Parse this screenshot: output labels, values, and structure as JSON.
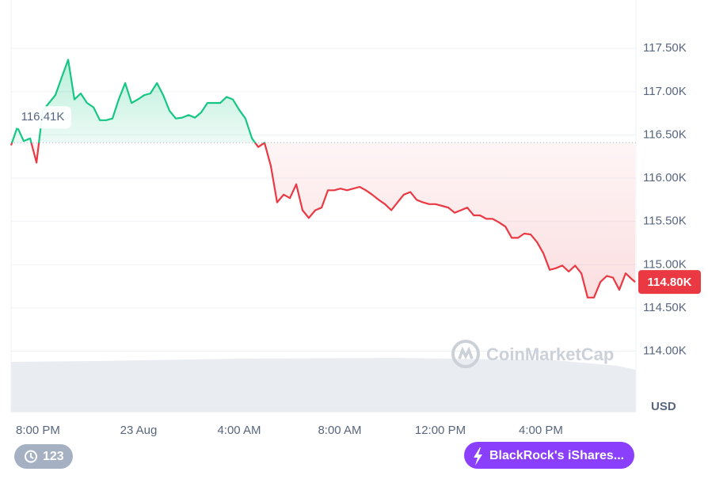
{
  "chart_data": {
    "type": "line",
    "x": [
      18.93,
      19.18,
      19.43,
      19.69,
      19.94,
      20.19,
      20.44,
      20.69,
      20.95,
      21.2,
      21.45,
      21.7,
      21.95,
      22.21,
      22.46,
      22.71,
      22.96,
      23.21,
      23.47,
      23.72,
      23.97,
      24.22,
      24.47,
      24.73,
      24.98,
      25.23,
      25.48,
      25.73,
      25.99,
      26.24,
      26.49,
      26.74,
      26.99,
      27.25,
      27.5,
      27.75,
      28.0,
      28.25,
      28.51,
      28.76,
      29.01,
      29.26,
      29.51,
      29.77,
      30.02,
      30.27,
      30.52,
      30.77,
      31.03,
      31.28,
      31.53,
      31.78,
      32.03,
      32.29,
      32.54,
      32.79,
      33.04,
      33.29,
      33.55,
      33.8,
      34.05,
      34.3,
      34.55,
      34.81,
      35.06,
      35.31,
      35.56,
      35.81,
      36.07,
      36.32,
      36.57,
      36.82,
      37.07,
      37.33,
      37.58,
      37.83,
      38.08,
      38.33,
      38.59,
      38.84,
      39.09,
      39.34,
      39.59,
      39.85,
      40.1,
      40.35,
      40.6,
      40.85,
      41.11,
      41.36,
      41.61,
      41.86,
      42.11,
      42.37,
      42.62,
      42.87,
      43.12,
      43.37,
      43.63,
      43.75
    ],
    "values": [
      116380,
      116590,
      116430,
      116460,
      116180,
      116780,
      116870,
      116960,
      117170,
      117370,
      116910,
      116980,
      116870,
      116820,
      116670,
      116670,
      116690,
      116910,
      117100,
      116870,
      116910,
      116960,
      116980,
      117100,
      116960,
      116780,
      116690,
      116700,
      116730,
      116700,
      116760,
      116870,
      116870,
      116870,
      116940,
      116910,
      116790,
      116690,
      116460,
      116360,
      116410,
      116140,
      115720,
      115810,
      115770,
      115930,
      115630,
      115540,
      115630,
      115660,
      115860,
      115860,
      115880,
      115860,
      115880,
      115900,
      115860,
      115810,
      115750,
      115700,
      115630,
      115720,
      115810,
      115840,
      115750,
      115720,
      115700,
      115700,
      115680,
      115660,
      115600,
      115630,
      115660,
      115570,
      115570,
      115530,
      115530,
      115490,
      115440,
      115310,
      115310,
      115360,
      115350,
      115260,
      115130,
      114940,
      114960,
      114990,
      114920,
      114990,
      114900,
      114620,
      114620,
      114800,
      114870,
      114850,
      114710,
      114900,
      114830,
      114800
    ],
    "color_up": "#16c784",
    "color_down": "#ea3943",
    "baseline": {
      "value": 116410,
      "label": "116.41K"
    },
    "last_price": {
      "value": 114800,
      "label": "114.80K"
    },
    "xlim": [
      18.93,
      43.78
    ],
    "ylim": [
      113300,
      118060
    ],
    "xticks": [
      {
        "value": 20,
        "label": "8:00 PM"
      },
      {
        "value": 24,
        "label": "23 Aug"
      },
      {
        "value": 28,
        "label": "4:00 AM"
      },
      {
        "value": 32,
        "label": "8:00 AM"
      },
      {
        "value": 36,
        "label": "12:00 PM"
      },
      {
        "value": 40,
        "label": "4:00 PM"
      }
    ],
    "yticks": [
      {
        "value": 114000,
        "label": "114.00K"
      },
      {
        "value": 114500,
        "label": "114.50K"
      },
      {
        "value": 115000,
        "label": "115.00K"
      },
      {
        "value": 115500,
        "label": "115.50K"
      },
      {
        "value": 116000,
        "label": "116.00K"
      },
      {
        "value": 116500,
        "label": "116.50K"
      },
      {
        "value": 117000,
        "label": "117.00K"
      },
      {
        "value": 117500,
        "label": "117.50K"
      }
    ],
    "grid": true,
    "y_axis_label": "USD",
    "watermark": "CoinMarketCap"
  },
  "history_badge": 123,
  "news_button": "BlackRock's iShares..."
}
